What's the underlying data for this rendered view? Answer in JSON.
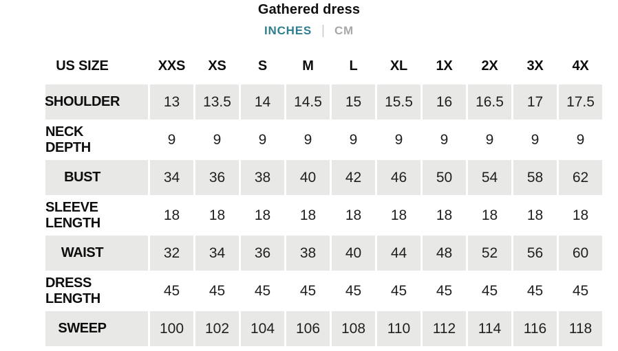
{
  "page": {
    "title": "Gathered dress",
    "units": {
      "inches_label": "INCHES",
      "cm_label": "CM",
      "divider": "|",
      "selected": "INCHES"
    },
    "colors": {
      "accent_teal": "#2e7f8e",
      "inactive_gray": "#a8a8a8",
      "row_stripe": "#e8e8e6"
    }
  },
  "table": {
    "header": [
      "US SIZE",
      "XXS",
      "XS",
      "S",
      "M",
      "L",
      "XL",
      "1X",
      "2X",
      "3X",
      "4X"
    ],
    "rows": [
      {
        "label": "SHOULDER",
        "values": [
          "13",
          "13.5",
          "14",
          "14.5",
          "15",
          "15.5",
          "16",
          "16.5",
          "17",
          "17.5"
        ]
      },
      {
        "label": "NECK DEPTH",
        "values": [
          "9",
          "9",
          "9",
          "9",
          "9",
          "9",
          "9",
          "9",
          "9",
          "9"
        ]
      },
      {
        "label": "BUST",
        "values": [
          "34",
          "36",
          "38",
          "40",
          "42",
          "46",
          "50",
          "54",
          "58",
          "62"
        ]
      },
      {
        "label": "SLEEVE LENGTH",
        "values": [
          "18",
          "18",
          "18",
          "18",
          "18",
          "18",
          "18",
          "18",
          "18",
          "18"
        ]
      },
      {
        "label": "WAIST",
        "values": [
          "32",
          "34",
          "36",
          "38",
          "40",
          "44",
          "48",
          "52",
          "56",
          "60"
        ]
      },
      {
        "label": "DRESS LENGTH",
        "values": [
          "45",
          "45",
          "45",
          "45",
          "45",
          "45",
          "45",
          "45",
          "45",
          "45"
        ]
      },
      {
        "label": "SWEEP",
        "values": [
          "100",
          "102",
          "104",
          "106",
          "108",
          "110",
          "112",
          "114",
          "116",
          "118"
        ]
      }
    ]
  }
}
